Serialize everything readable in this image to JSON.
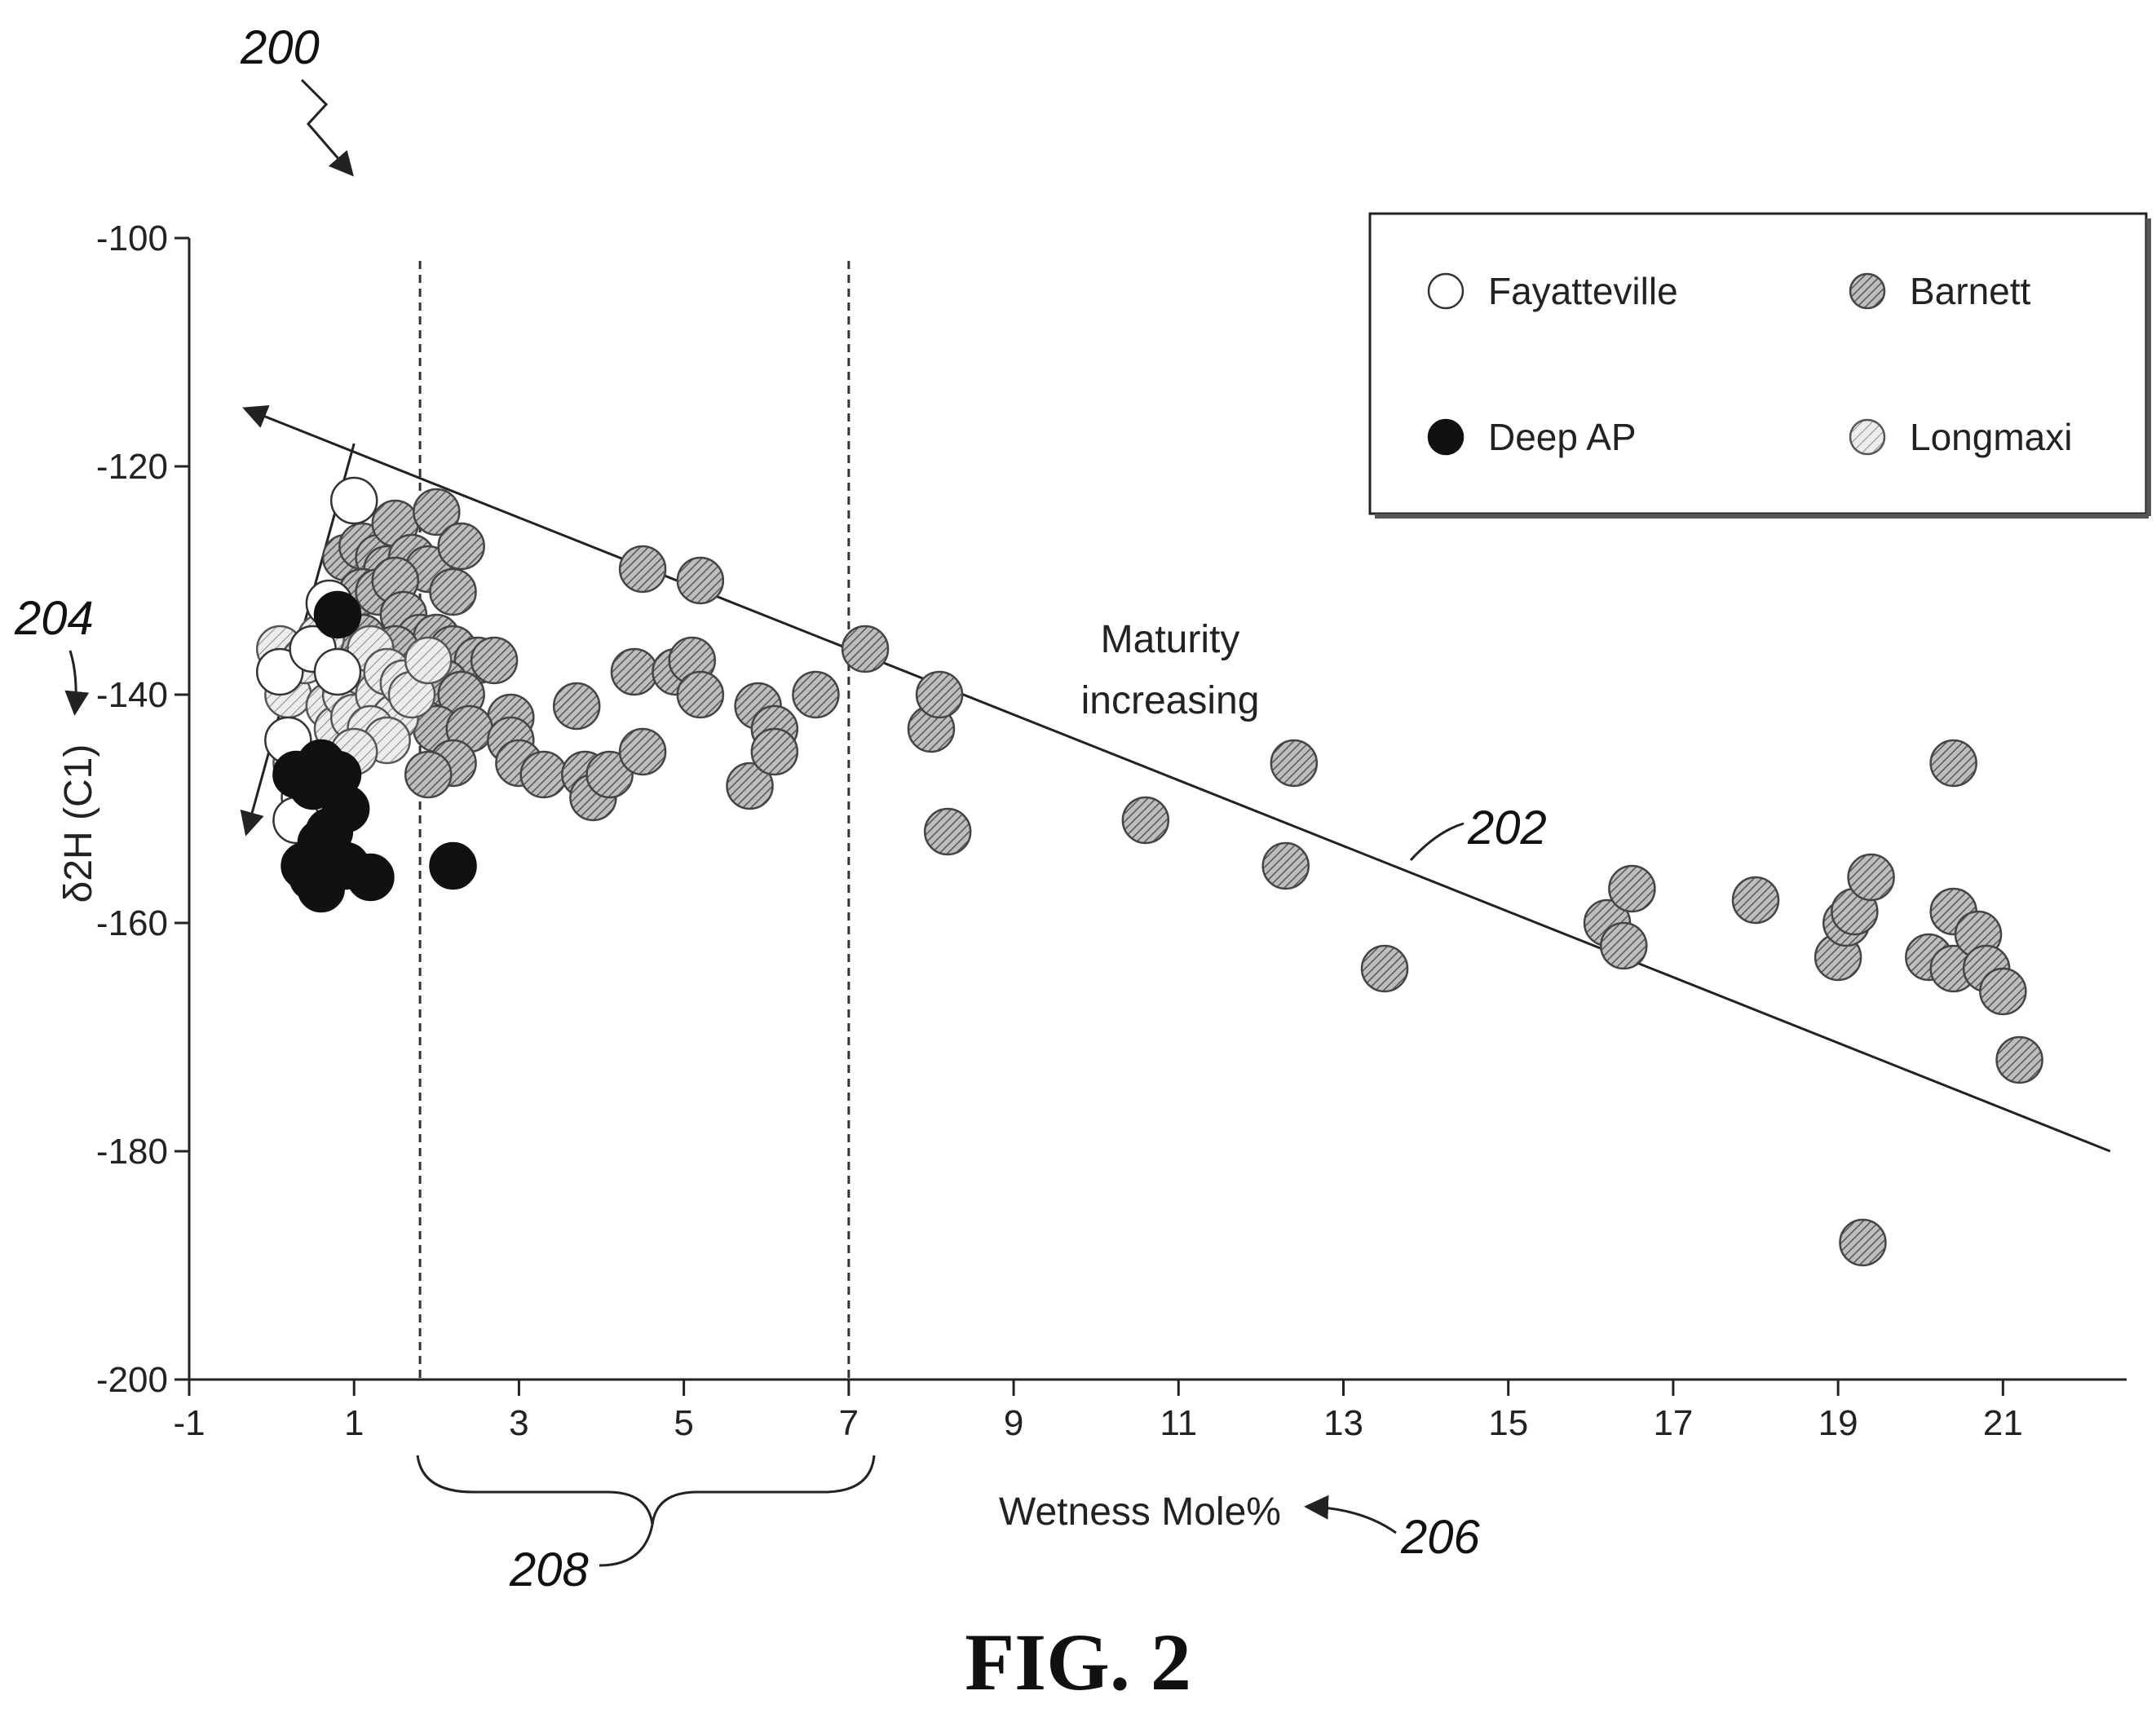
{
  "figure": {
    "caption": "FIG. 2",
    "reference_numbers": {
      "figure": "200",
      "trend_line": "202",
      "y_axis": "204",
      "x_axis": "206",
      "bracket": "208"
    }
  },
  "chart_data": {
    "type": "scatter",
    "title": "",
    "xlabel": "Wetness Mole%",
    "ylabel": "δ2H (C1)",
    "xlim": [
      -1,
      22.5
    ],
    "ylim": [
      -200,
      -100
    ],
    "xticks": [
      -1,
      1,
      3,
      5,
      7,
      9,
      11,
      13,
      15,
      17,
      19,
      21
    ],
    "yticks": [
      -100,
      -120,
      -140,
      -160,
      -180,
      -200
    ],
    "grid": false,
    "legend_position": "top-right",
    "annotation": [
      "Maturity",
      "increasing"
    ],
    "trend_line": {
      "from": [
        -0.3,
        -115
      ],
      "to": [
        22.3,
        -180
      ]
    },
    "early_arrow": {
      "from": [
        1.0,
        -118
      ],
      "to": [
        -0.3,
        -152
      ]
    },
    "vertical_lines_x": [
      1.8,
      7.0
    ],
    "colors": {
      "Fayatteville": "#ffffff",
      "Deep AP": "#111111",
      "Barnett": "#9a9a9a",
      "Longmaxi": "#cfcfcf"
    },
    "series": [
      {
        "name": "Fayatteville",
        "points": [
          [
            0.1,
            -138
          ],
          [
            0.2,
            -144
          ],
          [
            0.4,
            -149
          ],
          [
            0.5,
            -136
          ],
          [
            0.7,
            -132
          ],
          [
            0.8,
            -138
          ],
          [
            1.0,
            -123
          ],
          [
            0.3,
            -151
          ]
        ]
      },
      {
        "name": "Deep AP",
        "points": [
          [
            0.8,
            -133
          ],
          [
            0.3,
            -147
          ],
          [
            0.5,
            -148
          ],
          [
            0.6,
            -146
          ],
          [
            0.8,
            -147
          ],
          [
            0.9,
            -150
          ],
          [
            0.6,
            -153
          ],
          [
            0.7,
            -152
          ],
          [
            0.4,
            -155
          ],
          [
            0.5,
            -156
          ],
          [
            0.6,
            -157
          ],
          [
            0.9,
            -155
          ],
          [
            1.2,
            -156
          ],
          [
            2.2,
            -155
          ]
        ]
      },
      {
        "name": "Barnett",
        "points": [
          [
            0.9,
            -128
          ],
          [
            1.1,
            -127
          ],
          [
            1.3,
            -128
          ],
          [
            1.5,
            -125
          ],
          [
            1.4,
            -129
          ],
          [
            1.7,
            -128
          ],
          [
            1.9,
            -129
          ],
          [
            2.0,
            -124
          ],
          [
            2.3,
            -127
          ],
          [
            2.2,
            -131
          ],
          [
            1.1,
            -131
          ],
          [
            1.3,
            -131
          ],
          [
            1.5,
            -130
          ],
          [
            1.6,
            -133
          ],
          [
            1.8,
            -135
          ],
          [
            2.0,
            -135
          ],
          [
            2.2,
            -136
          ],
          [
            2.5,
            -137
          ],
          [
            2.7,
            -137
          ],
          [
            2.9,
            -142
          ],
          [
            1.1,
            -135
          ],
          [
            1.3,
            -137
          ],
          [
            1.5,
            -136
          ],
          [
            1.8,
            -138
          ],
          [
            2.1,
            -139
          ],
          [
            2.3,
            -140
          ],
          [
            2.0,
            -143
          ],
          [
            2.4,
            -143
          ],
          [
            2.2,
            -146
          ],
          [
            1.9,
            -147
          ],
          [
            2.9,
            -144
          ],
          [
            3.0,
            -146
          ],
          [
            3.3,
            -147
          ],
          [
            3.7,
            -141
          ],
          [
            3.8,
            -147
          ],
          [
            3.9,
            -149
          ],
          [
            4.1,
            -147
          ],
          [
            4.4,
            -138
          ],
          [
            4.5,
            -145
          ],
          [
            4.5,
            -129
          ],
          [
            4.9,
            -138
          ],
          [
            5.1,
            -137
          ],
          [
            5.2,
            -140
          ],
          [
            5.2,
            -130
          ],
          [
            5.9,
            -141
          ],
          [
            5.8,
            -148
          ],
          [
            6.1,
            -143
          ],
          [
            6.1,
            -145
          ],
          [
            6.6,
            -140
          ],
          [
            7.2,
            -136
          ],
          [
            8.0,
            -143
          ],
          [
            8.1,
            -140
          ],
          [
            8.2,
            -152
          ],
          [
            10.6,
            -151
          ],
          [
            12.4,
            -146
          ],
          [
            12.3,
            -155
          ],
          [
            13.5,
            -164
          ],
          [
            16.2,
            -160
          ],
          [
            16.4,
            -162
          ],
          [
            16.5,
            -157
          ],
          [
            18.0,
            -158
          ],
          [
            19.0,
            -163
          ],
          [
            19.1,
            -160
          ],
          [
            19.2,
            -159
          ],
          [
            19.4,
            -156
          ],
          [
            19.3,
            -188
          ],
          [
            20.1,
            -163
          ],
          [
            20.4,
            -164
          ],
          [
            20.4,
            -159
          ],
          [
            20.4,
            -146
          ],
          [
            20.7,
            -161
          ],
          [
            20.8,
            -164
          ],
          [
            21.0,
            -166
          ],
          [
            21.2,
            -172
          ]
        ]
      },
      {
        "name": "Longmaxi",
        "points": [
          [
            0.1,
            -136
          ],
          [
            0.2,
            -140
          ],
          [
            0.4,
            -137
          ],
          [
            0.6,
            -135
          ],
          [
            0.7,
            -141
          ],
          [
            0.8,
            -143
          ],
          [
            0.9,
            -140
          ],
          [
            1.0,
            -142
          ],
          [
            1.1,
            -138
          ],
          [
            1.2,
            -136
          ],
          [
            1.3,
            -140
          ],
          [
            1.4,
            -138
          ],
          [
            1.5,
            -142
          ],
          [
            1.6,
            -139
          ],
          [
            1.2,
            -143
          ],
          [
            1.4,
            -144
          ],
          [
            1.0,
            -145
          ],
          [
            1.7,
            -140
          ],
          [
            1.9,
            -137
          ],
          [
            0.3,
            -146
          ]
        ]
      }
    ]
  }
}
